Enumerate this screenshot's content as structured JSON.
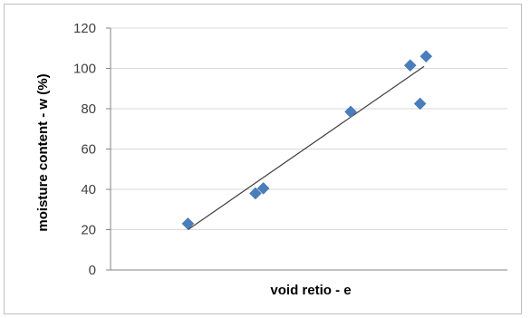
{
  "chart_data": {
    "type": "scatter",
    "title": "",
    "xlabel": "void retio - e",
    "ylabel": "moisture content - w (%)",
    "ylim": [
      0,
      120
    ],
    "yticks": [
      0,
      20,
      40,
      60,
      80,
      100,
      120
    ],
    "xlim": [
      0,
      1
    ],
    "x_tick_labels_shown": false,
    "grid": "horizontal",
    "legend": "none",
    "marker": "diamond",
    "colors": {
      "marker": "#4a7ebb",
      "trendline": "#404040",
      "grid": "#d9d9d9",
      "axis": "#868686"
    },
    "series": [
      {
        "x": [
          0.195,
          0.365,
          0.385,
          0.605,
          0.755,
          0.78,
          0.795
        ],
        "y": [
          23,
          38,
          40.5,
          78.5,
          101.5,
          82.5,
          106
        ]
      }
    ],
    "trendline": {
      "x": [
        0.195,
        0.79
      ],
      "y": [
        20,
        101
      ]
    }
  }
}
